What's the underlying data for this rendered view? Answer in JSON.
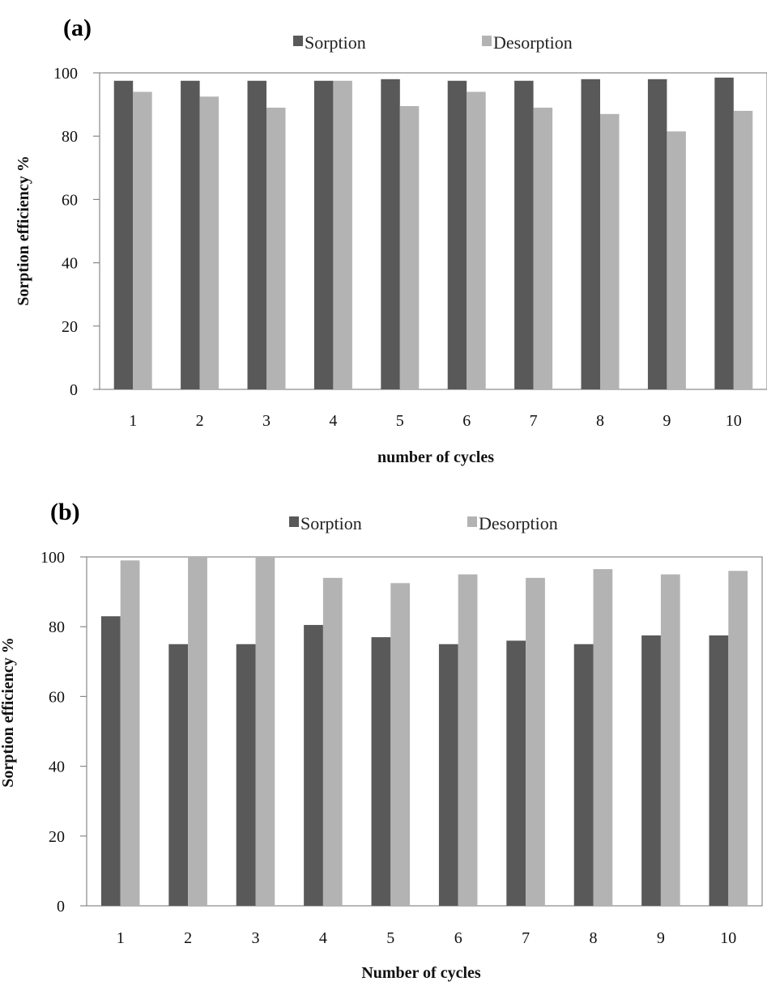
{
  "colors": {
    "sorption": "#595959",
    "desorption": "#b3b3b3",
    "axis": "#888888"
  },
  "chart_data": [
    {
      "type": "bar",
      "panel_label": "(a)",
      "categories": [
        "1",
        "2",
        "3",
        "4",
        "5",
        "6",
        "7",
        "8",
        "9",
        "10"
      ],
      "series": [
        {
          "name": "Sorption",
          "values": [
            97.5,
            97.5,
            97.5,
            97.5,
            98,
            97.5,
            97.5,
            98,
            98,
            98.5
          ]
        },
        {
          "name": "Desorption",
          "values": [
            94,
            92.5,
            89,
            97.5,
            89.5,
            94,
            89,
            87,
            81.5,
            88
          ]
        }
      ],
      "xlabel": "number of cycles",
      "ylabel": "Sorption efficiency %",
      "ylim": [
        0,
        100
      ],
      "yticks": [
        "0",
        "20",
        "40",
        "60",
        "80",
        "100"
      ],
      "grid": false,
      "legend": "top"
    },
    {
      "type": "bar",
      "panel_label": "(b)",
      "categories": [
        "1",
        "2",
        "3",
        "4",
        "5",
        "6",
        "7",
        "8",
        "9",
        "10"
      ],
      "series": [
        {
          "name": "Sorption",
          "values": [
            83,
            75,
            75,
            80.5,
            77,
            75,
            76,
            75,
            77.5,
            77.5
          ]
        },
        {
          "name": "Desorption",
          "values": [
            99,
            100,
            100,
            94,
            92.5,
            95,
            94,
            96.5,
            95,
            96
          ]
        }
      ],
      "xlabel": "Number of cycles",
      "ylabel": "Sorption efficiency %",
      "ylim": [
        0,
        100
      ],
      "yticks": [
        "0",
        "20",
        "40",
        "60",
        "80",
        "100"
      ],
      "grid": false,
      "legend": "top"
    }
  ]
}
